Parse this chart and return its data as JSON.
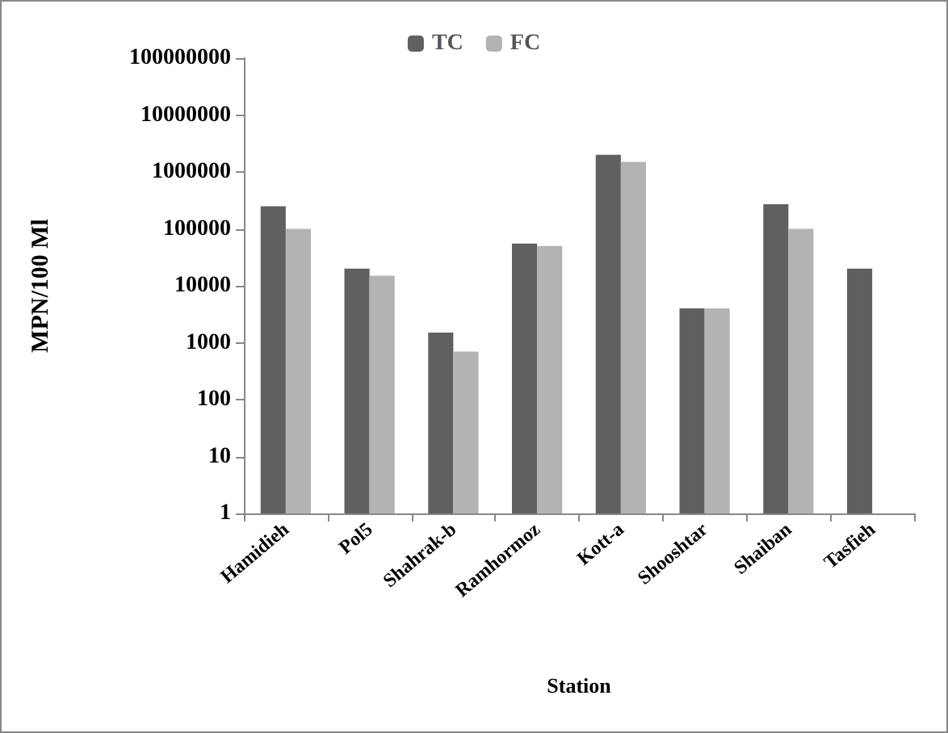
{
  "chart_data": {
    "type": "bar",
    "xlabel": "Station",
    "ylabel": "MPN/100 Ml",
    "categories": [
      "Hamidieh",
      "Pol5",
      "Shahrak-b",
      "Ramhormoz",
      "Kott-a",
      "Shooshtar",
      "Shaiban",
      "Tasfieh"
    ],
    "series": [
      {
        "name": "TC",
        "color": "#606060",
        "values": [
          250000,
          20000,
          1500,
          55000,
          2000000,
          4000,
          270000,
          20000
        ]
      },
      {
        "name": "FC",
        "color": "#b3b3b3",
        "values": [
          100000,
          15000,
          700,
          50000,
          1500000,
          4000,
          100000,
          null
        ]
      }
    ],
    "log": "y",
    "ylim": [
      1,
      100000000
    ],
    "yticks": [
      1,
      10,
      100,
      1000,
      10000,
      100000,
      1000000,
      10000000,
      100000000
    ],
    "grid": false,
    "legend": "top"
  }
}
